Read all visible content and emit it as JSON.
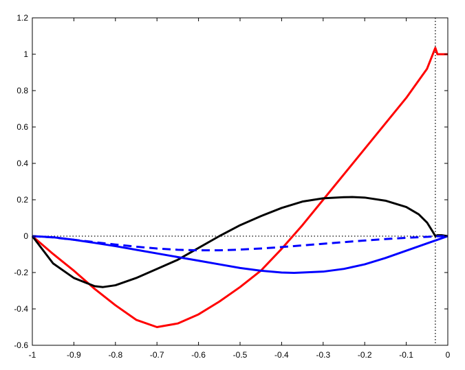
{
  "chart_data": {
    "type": "line",
    "title": "",
    "xlabel": "",
    "ylabel": "",
    "xlim": [
      -1,
      0
    ],
    "ylim": [
      -0.6,
      1.2
    ],
    "grid": false,
    "legend": "none",
    "xticks": [
      {
        "value": -1,
        "label": "-1"
      },
      {
        "value": -0.9,
        "label": "-0.9"
      },
      {
        "value": -0.8,
        "label": "-0.8"
      },
      {
        "value": -0.7,
        "label": "-0.7"
      },
      {
        "value": -0.6,
        "label": "-0.6"
      },
      {
        "value": -0.5,
        "label": "-0.5"
      },
      {
        "value": -0.4,
        "label": "-0.4"
      },
      {
        "value": -0.3,
        "label": "-0.3"
      },
      {
        "value": -0.2,
        "label": "-0.2"
      },
      {
        "value": -0.1,
        "label": "-0.1"
      },
      {
        "value": 0,
        "label": "0"
      }
    ],
    "yticks": [
      {
        "value": -0.6,
        "label": "-0.6"
      },
      {
        "value": -0.4,
        "label": "-0.4"
      },
      {
        "value": -0.2,
        "label": "-0.2"
      },
      {
        "value": 0,
        "label": "0"
      },
      {
        "value": 0.2,
        "label": "0.2"
      },
      {
        "value": 0.4,
        "label": "0.4"
      },
      {
        "value": 0.6,
        "label": "0.6"
      },
      {
        "value": 0.8,
        "label": "0.8"
      },
      {
        "value": 1,
        "label": "1"
      },
      {
        "value": 1.2,
        "label": "1.2"
      }
    ],
    "reference_lines": [
      {
        "orientation": "horizontal",
        "value": 0,
        "style": "dotted",
        "color": "#000000"
      },
      {
        "orientation": "vertical",
        "value": -0.03,
        "style": "dotted",
        "color": "#000000"
      }
    ],
    "series": [
      {
        "color": "#ff0000",
        "style": "solid",
        "x": [
          -1,
          -0.95,
          -0.9,
          -0.85,
          -0.8,
          -0.75,
          -0.7,
          -0.65,
          -0.6,
          -0.55,
          -0.5,
          -0.45,
          -0.4,
          -0.35,
          -0.3,
          -0.25,
          -0.2,
          -0.15,
          -0.1,
          -0.05,
          -0.03,
          -0.025,
          -0.02,
          0
        ],
        "y": [
          0,
          -0.098,
          -0.19,
          -0.29,
          -0.38,
          -0.46,
          -0.5,
          -0.48,
          -0.43,
          -0.36,
          -0.28,
          -0.19,
          -0.07,
          0.06,
          0.2,
          0.34,
          0.48,
          0.62,
          0.76,
          0.92,
          1.035,
          1.0,
          1.0,
          1.0
        ]
      },
      {
        "color": "#000000",
        "style": "solid",
        "x": [
          -1,
          -0.95,
          -0.9,
          -0.85,
          -0.83,
          -0.8,
          -0.75,
          -0.7,
          -0.65,
          -0.6,
          -0.55,
          -0.5,
          -0.45,
          -0.4,
          -0.35,
          -0.3,
          -0.25,
          -0.23,
          -0.2,
          -0.15,
          -0.1,
          -0.07,
          -0.05,
          -0.035,
          -0.03,
          -0.025,
          -0.015,
          0
        ],
        "y": [
          0,
          -0.15,
          -0.23,
          -0.275,
          -0.28,
          -0.27,
          -0.23,
          -0.18,
          -0.13,
          -0.065,
          0.0,
          0.06,
          0.11,
          0.155,
          0.19,
          0.208,
          0.214,
          0.215,
          0.212,
          0.195,
          0.16,
          0.12,
          0.075,
          0.02,
          0.0,
          0.005,
          0.005,
          0.0
        ]
      },
      {
        "color": "#0000ff",
        "style": "solid",
        "x": [
          -1,
          -0.95,
          -0.9,
          -0.85,
          -0.8,
          -0.75,
          -0.7,
          -0.65,
          -0.6,
          -0.55,
          -0.5,
          -0.45,
          -0.4,
          -0.37,
          -0.35,
          -0.3,
          -0.25,
          -0.2,
          -0.15,
          -0.1,
          -0.05,
          0
        ],
        "y": [
          0,
          -0.006,
          -0.02,
          -0.037,
          -0.055,
          -0.075,
          -0.095,
          -0.115,
          -0.135,
          -0.155,
          -0.175,
          -0.19,
          -0.2,
          -0.202,
          -0.2,
          -0.195,
          -0.18,
          -0.155,
          -0.12,
          -0.08,
          -0.04,
          0
        ]
      },
      {
        "color": "#0000ff",
        "style": "dashed",
        "x": [
          -1,
          -0.95,
          -0.9,
          -0.85,
          -0.8,
          -0.75,
          -0.7,
          -0.65,
          -0.6,
          -0.55,
          -0.5,
          -0.45,
          -0.4,
          -0.35,
          -0.3,
          -0.25,
          -0.2,
          -0.15,
          -0.1,
          -0.05,
          -0.03,
          0
        ],
        "y": [
          0,
          -0.007,
          -0.02,
          -0.033,
          -0.046,
          -0.058,
          -0.068,
          -0.075,
          -0.078,
          -0.078,
          -0.074,
          -0.068,
          -0.06,
          -0.051,
          -0.042,
          -0.033,
          -0.024,
          -0.016,
          -0.009,
          -0.004,
          -0.001,
          0
        ]
      }
    ]
  }
}
